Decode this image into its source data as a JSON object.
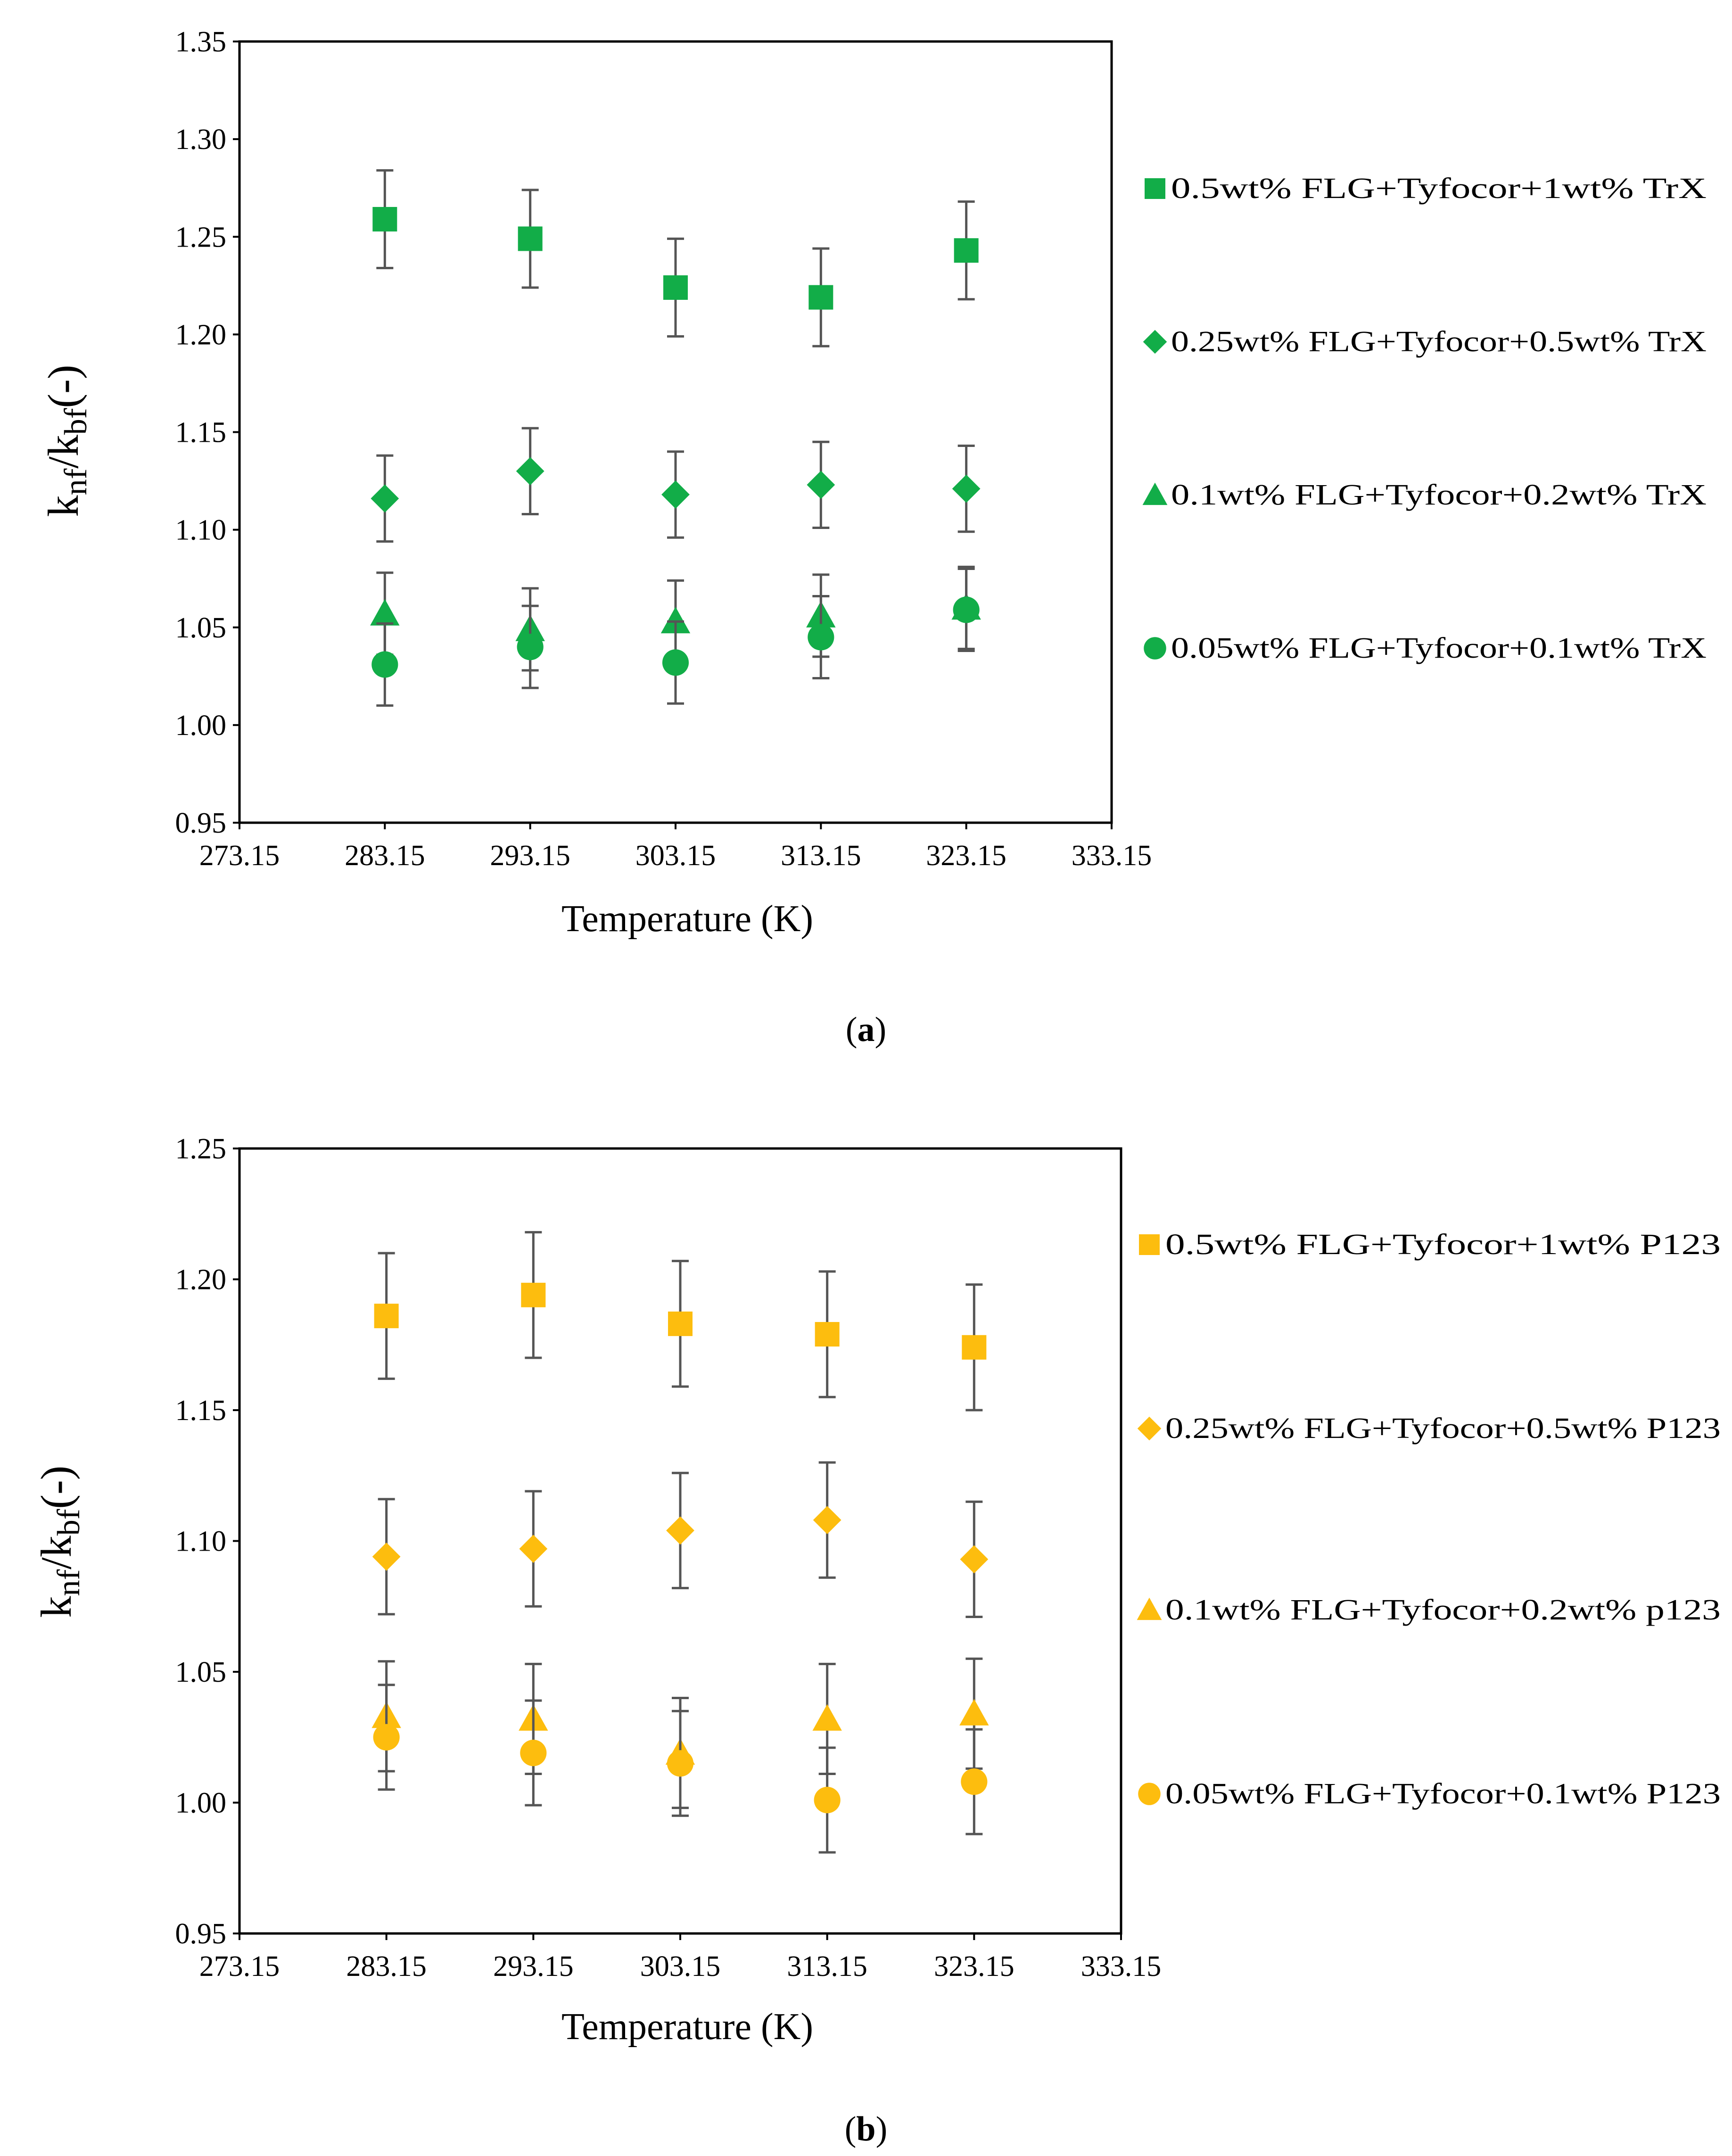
{
  "chart_data": [
    {
      "id": "a",
      "type": "scatter",
      "caption": "a",
      "xlabel": "Temperature (K)",
      "ylabel": {
        "k1": "k",
        "s1": "nf",
        "mid": "/k",
        "s2": "bf",
        "tail": "(-)"
      },
      "xlim": [
        273.15,
        333.15
      ],
      "ylim": [
        0.95,
        1.35
      ],
      "xticks": [
        "273.15",
        "283.15",
        "293.15",
        "303.15",
        "313.15",
        "323.15",
        "333.15"
      ],
      "yticks": [
        "0.95",
        "1.00",
        "1.05",
        "1.10",
        "1.15",
        "1.20",
        "1.25",
        "1.30",
        "1.35"
      ],
      "x": [
        283.15,
        293.15,
        303.15,
        313.15,
        323.15
      ],
      "color": "#12ad48",
      "error_bar_color": "#555555",
      "series": [
        {
          "name": "0.5wt% FLG+Tyfocor+1wt% TrX",
          "marker": "square",
          "values": [
            1.259,
            1.249,
            1.224,
            1.219,
            1.243
          ],
          "error": 0.025
        },
        {
          "name": "0.25wt% FLG+Tyfocor+0.5wt% TrX",
          "marker": "diamond",
          "values": [
            1.116,
            1.13,
            1.118,
            1.123,
            1.121
          ],
          "error": 0.022
        },
        {
          "name": "0.1wt% FLG+Tyfocor+0.2wt% TrX",
          "marker": "triangle",
          "values": [
            1.057,
            1.049,
            1.053,
            1.056,
            1.06
          ],
          "error": 0.021
        },
        {
          "name": "0.05wt% FLG+Tyfocor+0.1wt% TrX",
          "marker": "circle",
          "values": [
            1.031,
            1.04,
            1.032,
            1.045,
            1.059
          ],
          "error": 0.021
        }
      ]
    },
    {
      "id": "b",
      "type": "scatter",
      "caption": "b",
      "xlabel": "Temperature (K)",
      "ylabel": {
        "k1": "k",
        "s1": "nf",
        "mid": "/k",
        "s2": "bf",
        "tail": "(-)"
      },
      "xlim": [
        273.15,
        333.15
      ],
      "ylim": [
        0.95,
        1.25
      ],
      "xticks": [
        "273.15",
        "283.15",
        "293.15",
        "303.15",
        "313.15",
        "323.15",
        "333.15"
      ],
      "yticks": [
        "0.95",
        "1.00",
        "1.05",
        "1.10",
        "1.15",
        "1.20",
        "1.25"
      ],
      "x": [
        283.15,
        293.15,
        303.15,
        313.15,
        323.15
      ],
      "color": "#fdbd0e",
      "error_bar_color": "#555555",
      "series": [
        {
          "name": "0.5wt% FLG+Tyfocor+1wt% P123",
          "marker": "square",
          "values": [
            1.186,
            1.194,
            1.183,
            1.179,
            1.174
          ],
          "error": 0.024
        },
        {
          "name": "0.25wt% FLG+Tyfocor+0.5wt% P123",
          "marker": "diamond",
          "values": [
            1.094,
            1.097,
            1.104,
            1.108,
            1.093
          ],
          "error": 0.022
        },
        {
          "name": "0.1wt% FLG+Tyfocor+0.2wt% p123",
          "marker": "triangle",
          "values": [
            1.033,
            1.032,
            1.019,
            1.032,
            1.034
          ],
          "error": 0.021
        },
        {
          "name": "0.05wt% FLG+Tyfocor+0.1wt% P123",
          "marker": "circle",
          "values": [
            1.025,
            1.019,
            1.015,
            1.001,
            1.008
          ],
          "error": 0.02
        }
      ]
    }
  ]
}
